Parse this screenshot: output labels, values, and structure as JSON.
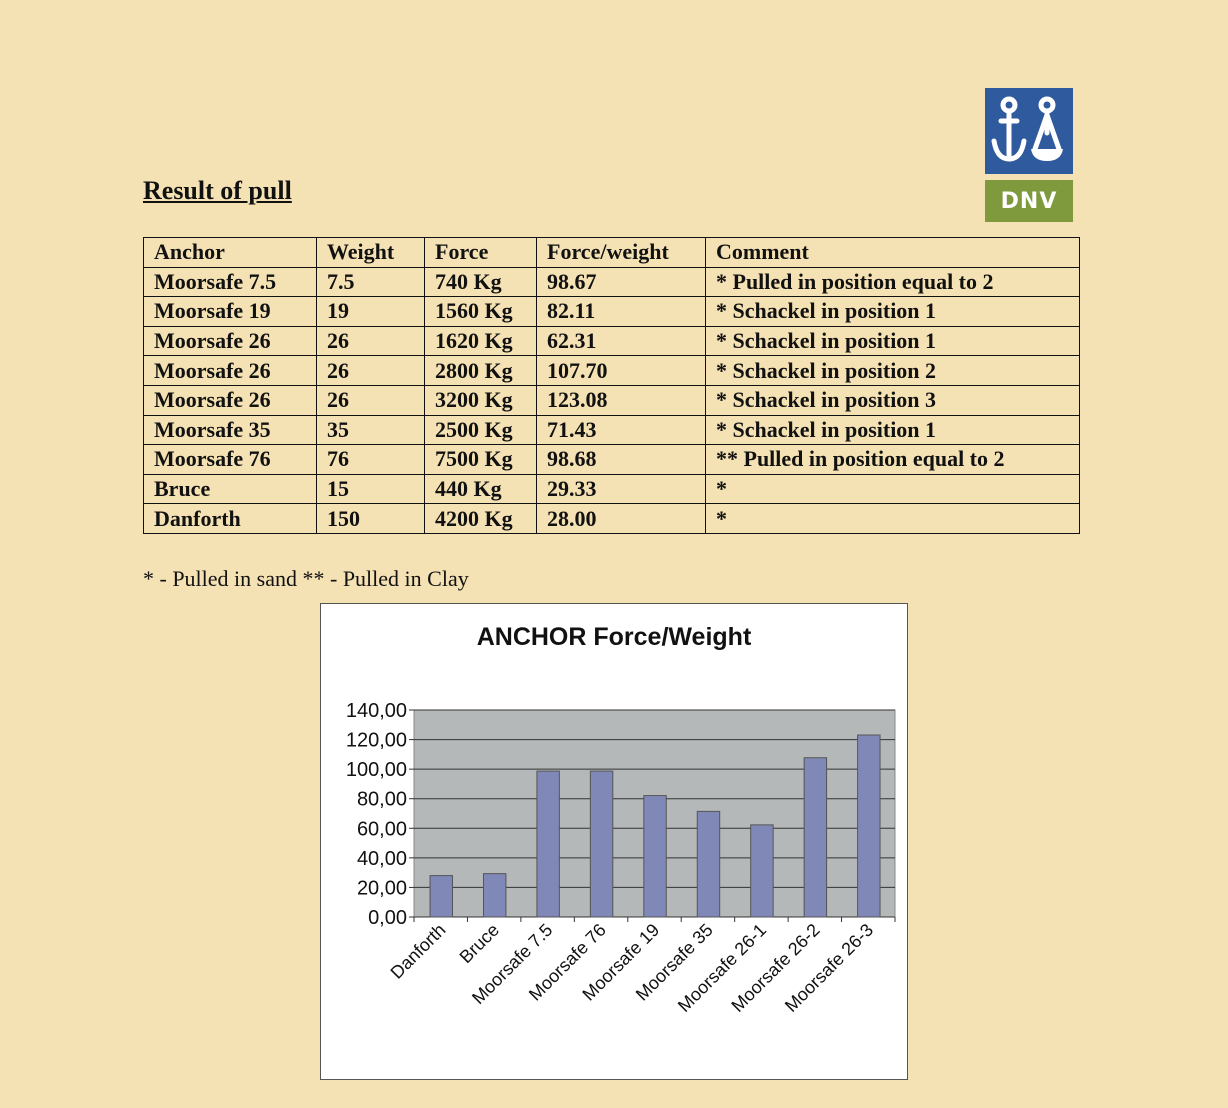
{
  "logo": {
    "text": "DNV",
    "colors": {
      "top": "#2f5a9e",
      "bottom": "#7e9a3c"
    }
  },
  "heading": "Result of pull",
  "table": {
    "headers": [
      "Anchor",
      "Weight",
      "Force",
      "Force/weight",
      "Comment"
    ],
    "rows": [
      [
        "Moorsafe 7.5",
        "7.5",
        "740 Kg",
        "98.67",
        "* Pulled in position equal to 2"
      ],
      [
        "Moorsafe 19",
        "19",
        "1560 Kg",
        "82.11",
        "* Schackel in position 1"
      ],
      [
        "Moorsafe 26",
        "26",
        "1620 Kg",
        "62.31",
        "* Schackel in position 1"
      ],
      [
        "Moorsafe 26",
        "26",
        "2800 Kg",
        "107.70",
        "* Schackel in position 2"
      ],
      [
        "Moorsafe 26",
        "26",
        "3200 Kg",
        "123.08",
        "* Schackel in position 3"
      ],
      [
        "Moorsafe 35",
        "35",
        "2500 Kg",
        "71.43",
        "* Schackel in position 1"
      ],
      [
        "Moorsafe 76",
        "76",
        "7500 Kg",
        "98.68",
        "** Pulled in position equal to 2"
      ],
      [
        "Bruce",
        "15",
        "440 Kg",
        "29.33",
        "*"
      ],
      [
        "Danforth",
        "150",
        "4200 Kg",
        "28.00",
        "*"
      ]
    ]
  },
  "footnote": "*  - Pulled in sand  ** - Pulled in Clay",
  "chart_data": {
    "type": "bar",
    "title": "ANCHOR Force/Weight",
    "categories": [
      "Danforth",
      "Bruce",
      "Moorsafe 7.5",
      "Moorsafe 76",
      "Moorsafe 19",
      "Moorsafe 35",
      "Moorsafe 26-1",
      "Moorsafe 26-2",
      "Moorsafe 26-3"
    ],
    "values": [
      28.0,
      29.33,
      98.67,
      98.68,
      82.11,
      71.43,
      62.31,
      107.7,
      123.08
    ],
    "ylim": [
      0,
      140
    ],
    "yticks": [
      "0,00",
      "20,00",
      "40,00",
      "60,00",
      "80,00",
      "100,00",
      "120,00",
      "140,00"
    ],
    "grid": true,
    "colors": {
      "bar": "#8088b8",
      "plot_bg": "#b4b8b8"
    }
  }
}
